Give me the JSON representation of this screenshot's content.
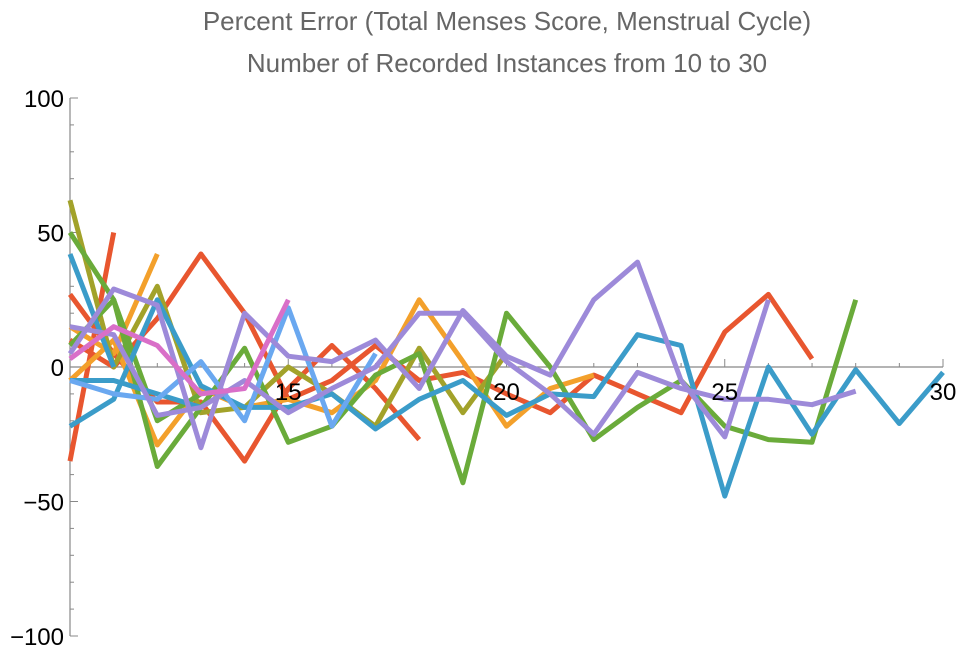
{
  "chart_data": {
    "type": "line",
    "title": "Percent Error (Total Menses Score, Menstrual Cycle)",
    "subtitle": "Number of Recorded Instances from 10 to 30",
    "xlabel": "",
    "ylabel": "",
    "xlim": [
      10,
      30
    ],
    "ylim": [
      -100,
      100
    ],
    "x_ticks": [
      15,
      20,
      25,
      30
    ],
    "y_ticks": [
      -100,
      -50,
      0,
      50,
      100
    ],
    "grid": false,
    "legend": "none",
    "series": [
      {
        "color": "#e8562f",
        "x": [
          10,
          11
        ],
        "y": [
          -35,
          50
        ]
      },
      {
        "color": "#e8562f",
        "x": [
          10,
          11,
          12,
          13,
          14,
          15,
          16,
          17,
          18
        ],
        "y": [
          27,
          5,
          -13,
          -13,
          -35,
          -8,
          8,
          -8,
          -27
        ]
      },
      {
        "color": "#e8562f",
        "x": [
          10,
          11,
          12,
          13,
          14,
          15,
          16,
          17,
          18,
          19,
          20,
          21,
          22,
          23,
          24,
          25,
          26,
          27
        ],
        "y": [
          10,
          0,
          18,
          42,
          20,
          -12,
          -5,
          8,
          -5,
          -2,
          -10,
          -17,
          -3,
          -10,
          -17,
          13,
          27,
          3
        ]
      },
      {
        "color": "#f3a02b",
        "x": [
          10,
          11,
          12,
          13,
          14,
          15,
          16,
          17,
          18,
          19,
          20,
          21,
          22
        ],
        "y": [
          -5,
          10,
          -29,
          -8,
          -15,
          -12,
          -17,
          -5,
          25,
          2,
          -22,
          -8,
          -3
        ]
      },
      {
        "color": "#f3a02b",
        "x": [
          10,
          11,
          12
        ],
        "y": [
          15,
          5,
          42
        ]
      },
      {
        "color": "#a2a22a",
        "x": [
          10,
          11,
          12,
          13,
          14,
          15,
          16,
          17,
          18,
          19,
          20
        ],
        "y": [
          62,
          0,
          30,
          -17,
          -15,
          0,
          -10,
          -22,
          7,
          -17,
          5
        ]
      },
      {
        "color": "#6aab3a",
        "x": [
          10,
          11,
          12,
          13,
          14,
          15,
          16,
          17,
          18,
          19,
          20,
          21,
          22,
          23,
          24,
          25,
          26,
          27,
          28
        ],
        "y": [
          50,
          25,
          -37,
          -15,
          7,
          -28,
          -22,
          -3,
          5,
          -43,
          20,
          0,
          -27,
          -15,
          -5,
          -22,
          -27,
          -28,
          25
        ]
      },
      {
        "color": "#6aab3a",
        "x": [
          10,
          11,
          12,
          13
        ],
        "y": [
          8,
          25,
          -20,
          -10
        ]
      },
      {
        "color": "#3b9cc9",
        "x": [
          10,
          11,
          12,
          13,
          14,
          15,
          16,
          17,
          18,
          19,
          20,
          21,
          22,
          23,
          24,
          25,
          26,
          27,
          28,
          29,
          30
        ],
        "y": [
          -22,
          -12,
          25,
          -7,
          -15,
          -15,
          -10,
          -23,
          -12,
          -5,
          -18,
          -10,
          -11,
          12,
          8,
          -48,
          0,
          -25,
          -1,
          -21,
          -2
        ]
      },
      {
        "color": "#3b9cc9",
        "x": [
          10,
          11,
          12,
          13
        ],
        "y": [
          -5,
          -5,
          -10,
          -15
        ]
      },
      {
        "color": "#3b9cc9",
        "x": [
          10,
          11
        ],
        "y": [
          42,
          0
        ]
      },
      {
        "color": "#6aa8f0",
        "x": [
          10,
          11,
          12,
          13,
          14,
          15,
          16,
          17
        ],
        "y": [
          -5,
          -10,
          -12,
          2,
          -20,
          22,
          -22,
          5
        ]
      },
      {
        "color": "#9d8ad9",
        "x": [
          10,
          11,
          12,
          13,
          14,
          15,
          16,
          17,
          18,
          19,
          20,
          21,
          22,
          23,
          24,
          25,
          26
        ],
        "y": [
          5,
          29,
          23,
          -30,
          20,
          4,
          2,
          10,
          -8,
          21,
          4,
          -3,
          25,
          39,
          -5,
          -26,
          25
        ]
      },
      {
        "color": "#9d8ad9",
        "x": [
          10,
          11,
          12,
          13,
          14,
          15,
          16,
          17,
          18,
          19,
          20,
          21,
          22,
          23,
          24,
          25,
          26,
          27,
          28
        ],
        "y": [
          15,
          12,
          -18,
          -15,
          -5,
          -17,
          -8,
          0,
          20,
          20,
          2,
          -10,
          -25,
          -2,
          -8,
          -12,
          -12,
          -14,
          -9
        ]
      },
      {
        "color": "#d96fc8",
        "x": [
          10,
          11,
          12,
          13,
          14,
          15
        ],
        "y": [
          3,
          15,
          8,
          -10,
          -8,
          25
        ]
      }
    ]
  }
}
